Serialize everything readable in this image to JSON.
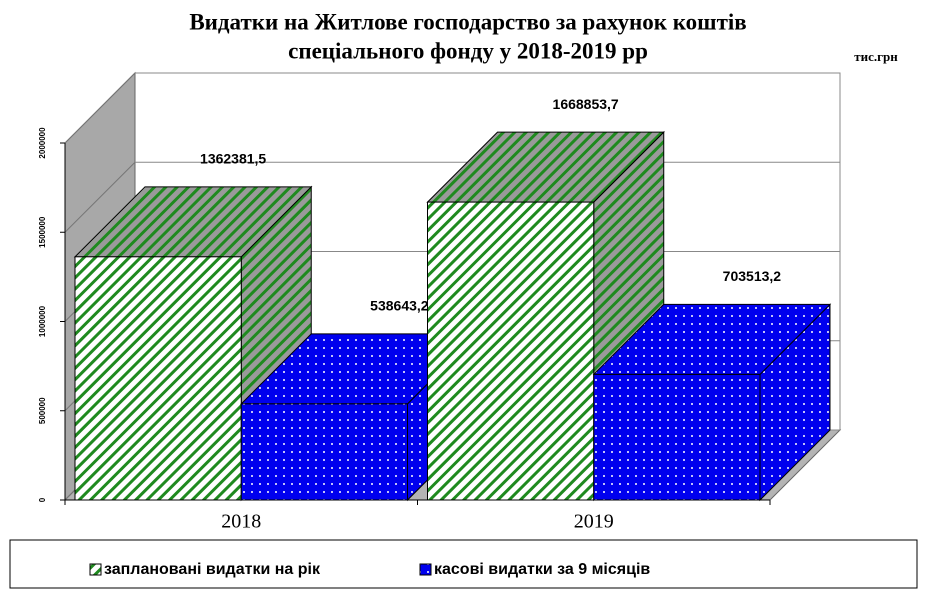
{
  "chart_data": {
    "type": "bar3d",
    "title": [
      "Видатки на Житлове господарство за рахунок коштів",
      "спеціального фонду у 2018-2019 рр"
    ],
    "unit_label": "тис.грн",
    "categories": [
      "2018",
      "2019"
    ],
    "series": [
      {
        "name": "заплановані видатки на рік",
        "color": "#1f8a1f",
        "pattern": "stripes",
        "values": [
          1362381.5,
          1668853.7
        ],
        "value_labels": [
          "1362381,5",
          "1668853,7"
        ]
      },
      {
        "name": "касові видатки за 9 місяців",
        "color": "#0000ee",
        "pattern": "dots",
        "values": [
          538643.2,
          703513.2
        ],
        "value_labels": [
          "538643,2",
          "703513,2"
        ]
      }
    ],
    "ylim": [
      0,
      2000000
    ],
    "yticks": [
      0,
      500000,
      1000000,
      1500000,
      2000000
    ],
    "grid": true
  }
}
